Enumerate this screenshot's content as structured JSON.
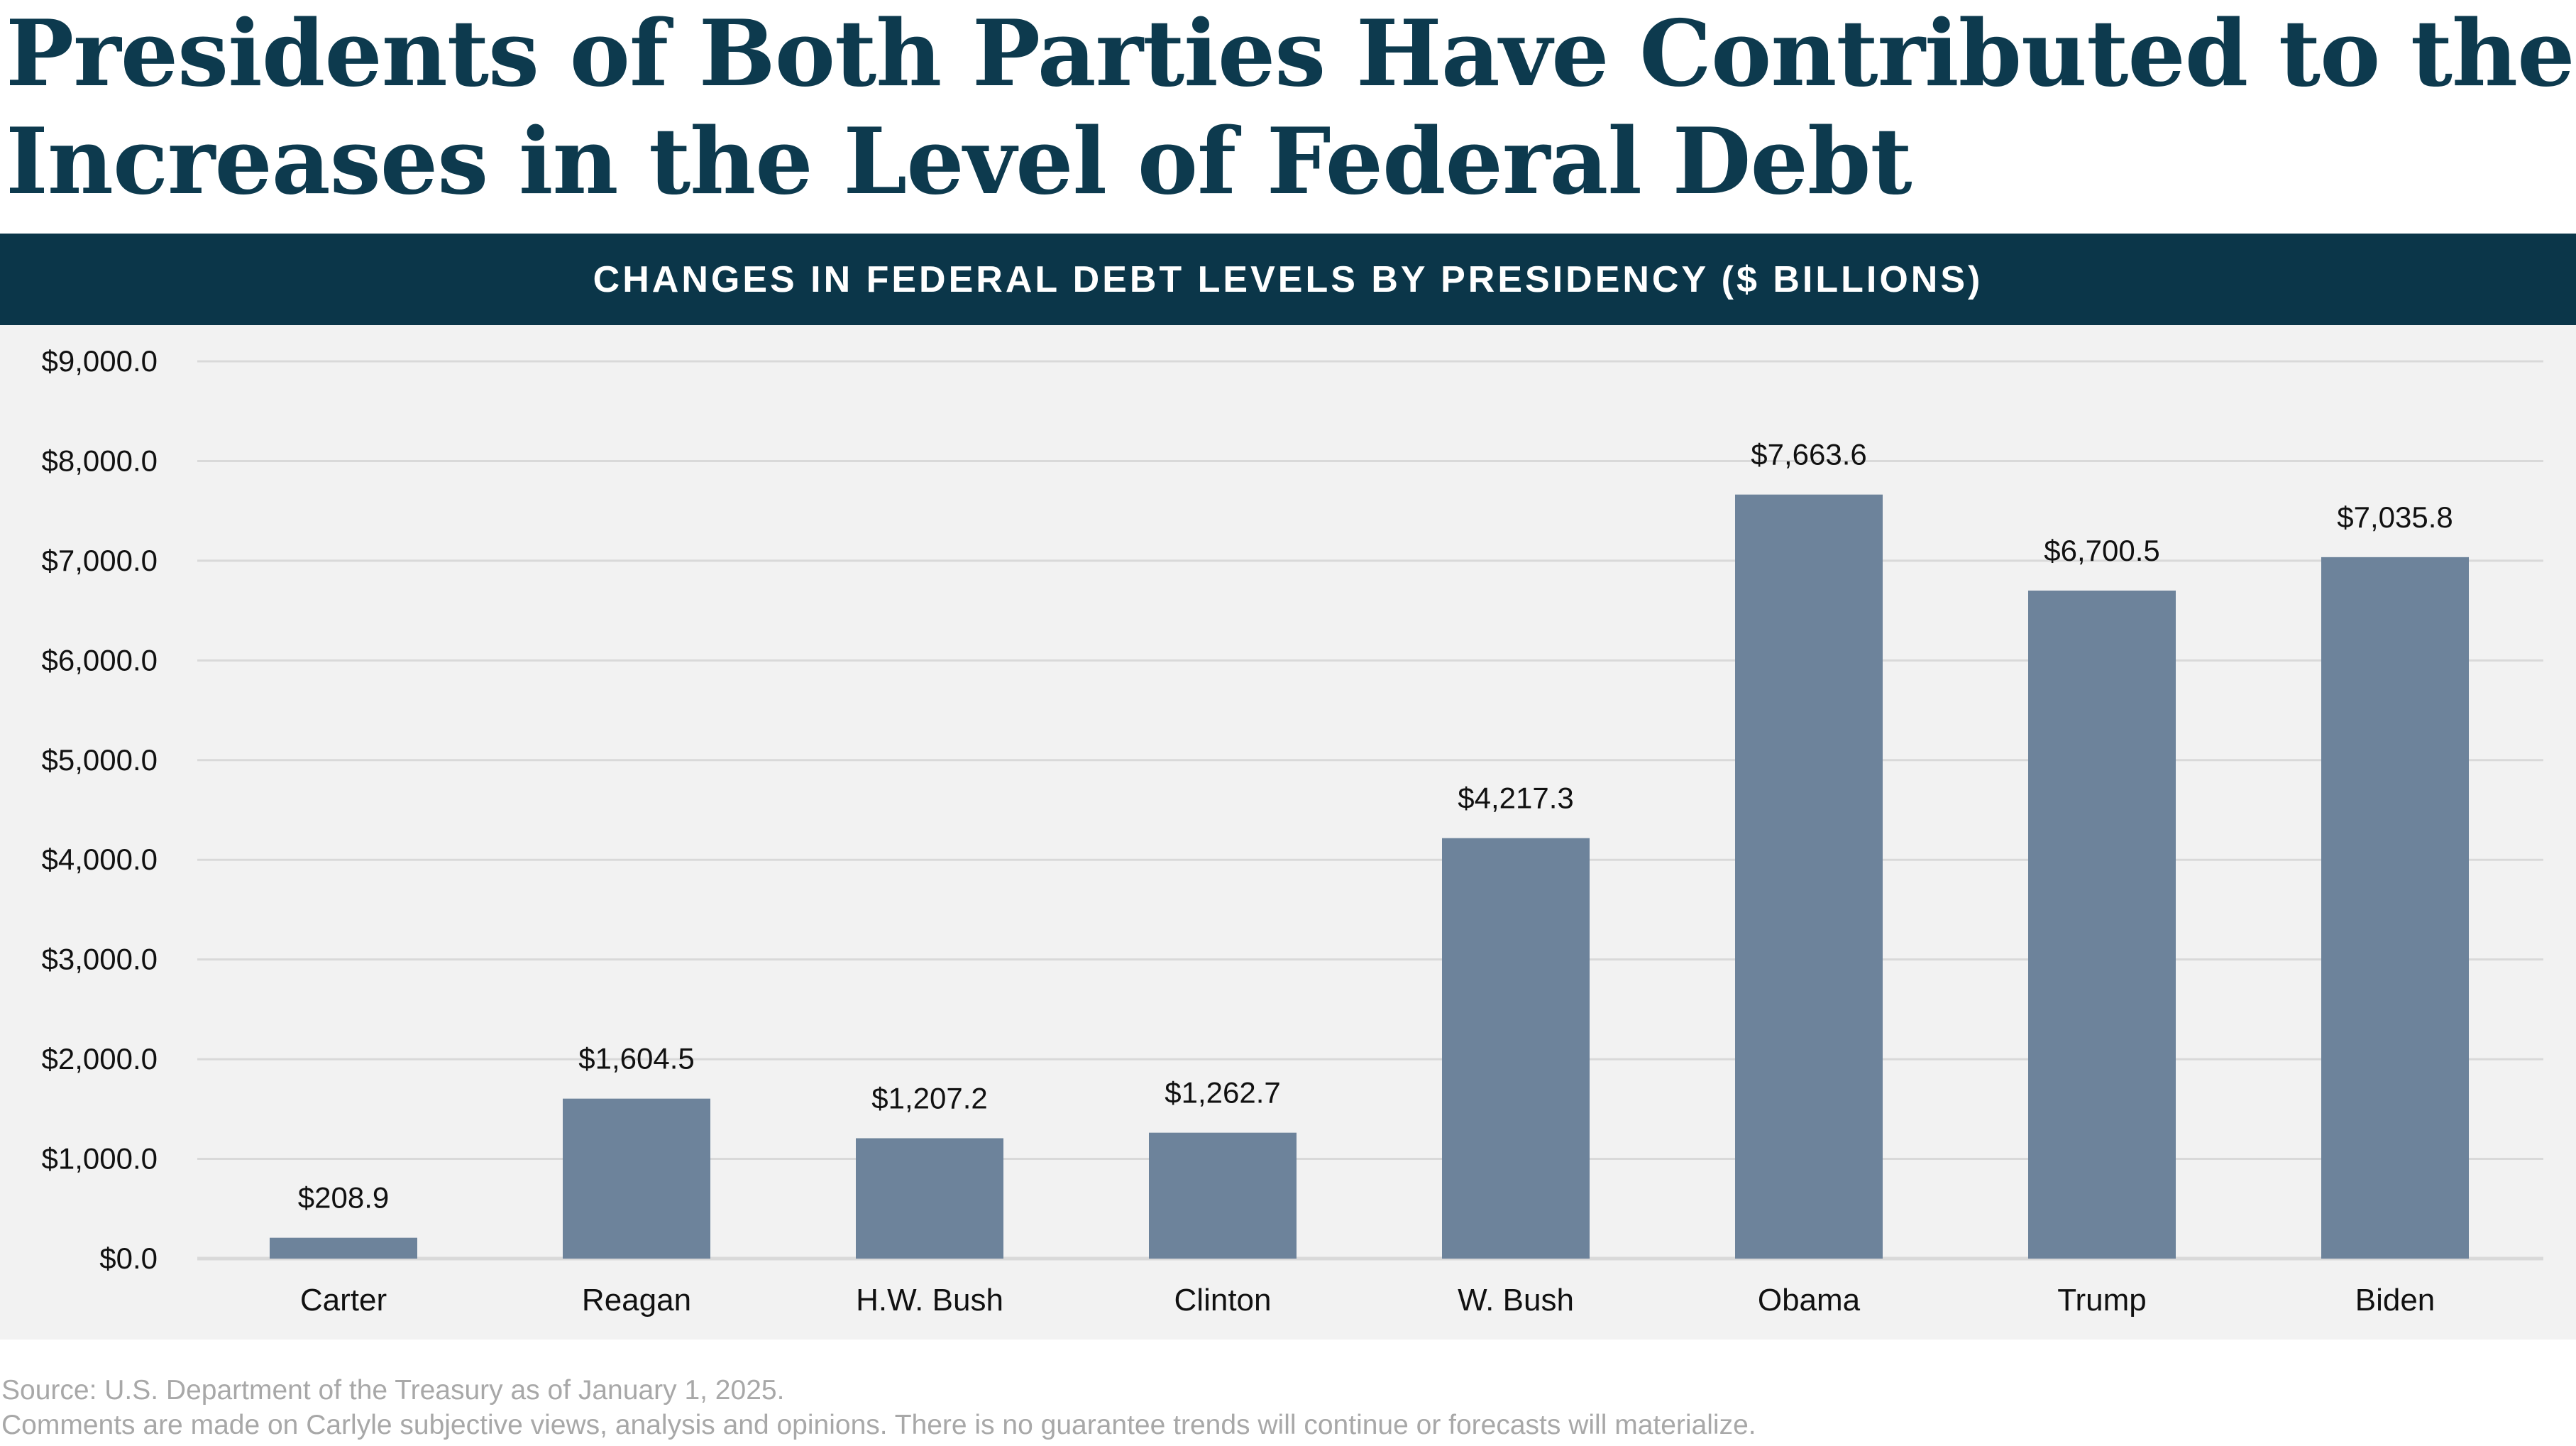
{
  "title": "Presidents of Both Parties Have Contributed to the Increases in the Level of Federal Debt",
  "title_lines": [
    "Presidents of Both Parties Have Contributed to the",
    "Increases in the Level of Federal Debt"
  ],
  "colors": {
    "title": "#0d3a4e",
    "banner": "#0b3649",
    "bar": "#6d839b",
    "panel": "#f2f2f2",
    "grid": "#d9d9d9"
  },
  "chart_data": {
    "type": "bar",
    "title": "CHANGES IN FEDERAL DEBT LEVELS BY PRESIDENCY ($ BILLIONS)",
    "categories": [
      "Carter",
      "Reagan",
      "H.W. Bush",
      "Clinton",
      "W. Bush",
      "Obama",
      "Trump",
      "Biden"
    ],
    "values": [
      208.9,
      1604.5,
      1207.2,
      1262.7,
      4217.3,
      7663.6,
      6700.5,
      7035.8
    ],
    "data_labels": [
      "$208.9",
      "$1,604.5",
      "$1,207.2",
      "$1,262.7",
      "$4,217.3",
      "$7,663.6",
      "$6,700.5",
      "$7,035.8"
    ],
    "ylim": [
      0,
      9000
    ],
    "yticks": [
      0,
      1000,
      2000,
      3000,
      4000,
      5000,
      6000,
      7000,
      8000,
      9000
    ],
    "ytick_labels": [
      "$0.0",
      "$1,000.0",
      "$2,000.0",
      "$3,000.0",
      "$4,000.0",
      "$5,000.0",
      "$6,000.0",
      "$7,000.0",
      "$8,000.0",
      "$9,000.0"
    ],
    "xlabel": "",
    "ylabel": "",
    "grid": true
  },
  "footer": {
    "source": "Source: U.S. Department of the Treasury as of January 1, 2025.",
    "disclaimer": "Comments are made on Carlyle subjective views, analysis and opinions. There is no guarantee trends will continue or forecasts will materialize."
  }
}
